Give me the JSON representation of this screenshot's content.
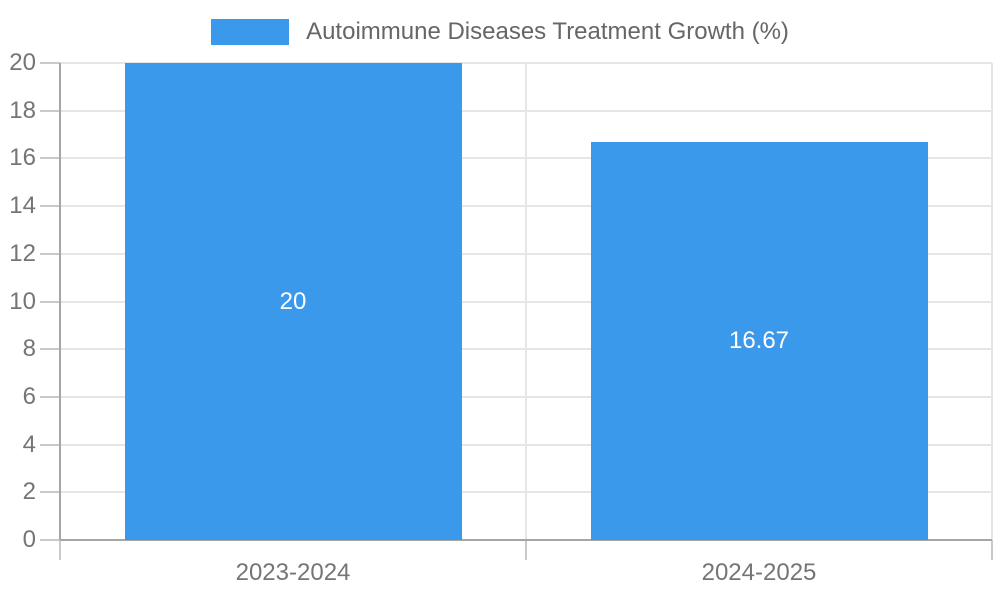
{
  "legend": {
    "label": "Autoimmune Diseases Treatment Growth (%)"
  },
  "chart_data": {
    "type": "bar",
    "title": "Autoimmune Diseases Treatment Growth (%)",
    "categories": [
      "2023-2024",
      "2024-2025"
    ],
    "series": [
      {
        "name": "Autoimmune Diseases Treatment Growth (%)",
        "values": [
          20,
          16.67
        ],
        "value_labels": [
          "20",
          "16.67"
        ]
      }
    ],
    "xlabel": "",
    "ylabel": "",
    "ylim": [
      0,
      20
    ],
    "ytick_step": 2,
    "grid": true,
    "legend_position": "top",
    "colors": {
      "bar_fill": "#3b99ec",
      "value_label_text": "#ffffff",
      "tick_label_text": "#757575",
      "legend_text": "#666666",
      "gridline": "#e6e6e6",
      "tick_mark": "#c9c9c9",
      "axis_line": "#a6a6a6",
      "background": "#ffffff"
    }
  }
}
